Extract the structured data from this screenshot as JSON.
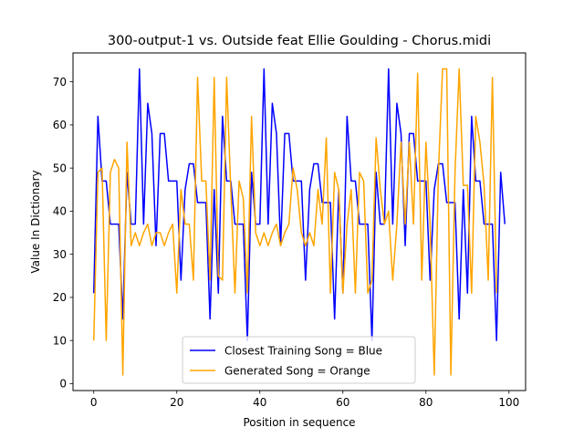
{
  "chart_data": {
    "type": "line",
    "title": "300-output-1 vs. Outside feat Ellie Goulding - Chorus.midi",
    "xlabel": "Position in sequence",
    "ylabel": "Value In Dictionary",
    "xlim": [
      -5,
      104
    ],
    "ylim": [
      -1.6,
      76.7
    ],
    "xticks": [
      0,
      20,
      40,
      60,
      80,
      100
    ],
    "yticks": [
      0,
      10,
      20,
      30,
      40,
      50,
      60,
      70
    ],
    "grid": false,
    "legend_position": "bottom-center",
    "series": [
      {
        "name": "Closest Training Song = Blue",
        "color": "#0000ff",
        "values": [
          21,
          62,
          47,
          47,
          37,
          37,
          37,
          15,
          49,
          37,
          37,
          73,
          37,
          65,
          58,
          32,
          58,
          58,
          47,
          47,
          47,
          24,
          45,
          51,
          51,
          42,
          42,
          42,
          15,
          45,
          21,
          62,
          47,
          47,
          37,
          37,
          37,
          10,
          49,
          37,
          37,
          73,
          37,
          65,
          58,
          32,
          58,
          58,
          47,
          47,
          47,
          24,
          45,
          51,
          51,
          42,
          42,
          42,
          15,
          45,
          21,
          62,
          47,
          47,
          37,
          37,
          37,
          10,
          49,
          37,
          37,
          73,
          37,
          65,
          58,
          32,
          58,
          58,
          47,
          47,
          47,
          24,
          45,
          51,
          51,
          42,
          42,
          42,
          15,
          45,
          21,
          62,
          47,
          47,
          37,
          37,
          37,
          10,
          49,
          37
        ]
      },
      {
        "name": "Generated Song = Orange",
        "color": "#ffa500",
        "values": [
          10,
          49,
          50,
          10,
          49,
          52,
          50,
          2,
          56,
          32,
          35,
          32,
          35,
          37,
          32,
          35,
          35,
          32,
          35,
          37,
          21,
          45,
          37,
          37,
          24,
          71,
          47,
          47,
          24,
          71,
          25,
          24,
          71,
          45,
          21,
          47,
          43,
          21,
          62,
          35,
          32,
          35,
          32,
          35,
          37,
          32,
          35,
          37,
          50,
          45,
          35,
          32,
          35,
          32,
          45,
          37,
          57,
          21,
          49,
          45,
          21,
          37,
          45,
          21,
          49,
          47,
          21,
          24,
          57,
          45,
          37,
          40,
          24,
          37,
          56,
          37,
          56,
          37,
          72,
          24,
          56,
          37,
          2,
          49,
          73,
          73,
          2,
          49,
          73,
          46,
          46,
          21,
          62,
          56,
          46,
          24,
          71,
          21
        ]
      }
    ]
  }
}
